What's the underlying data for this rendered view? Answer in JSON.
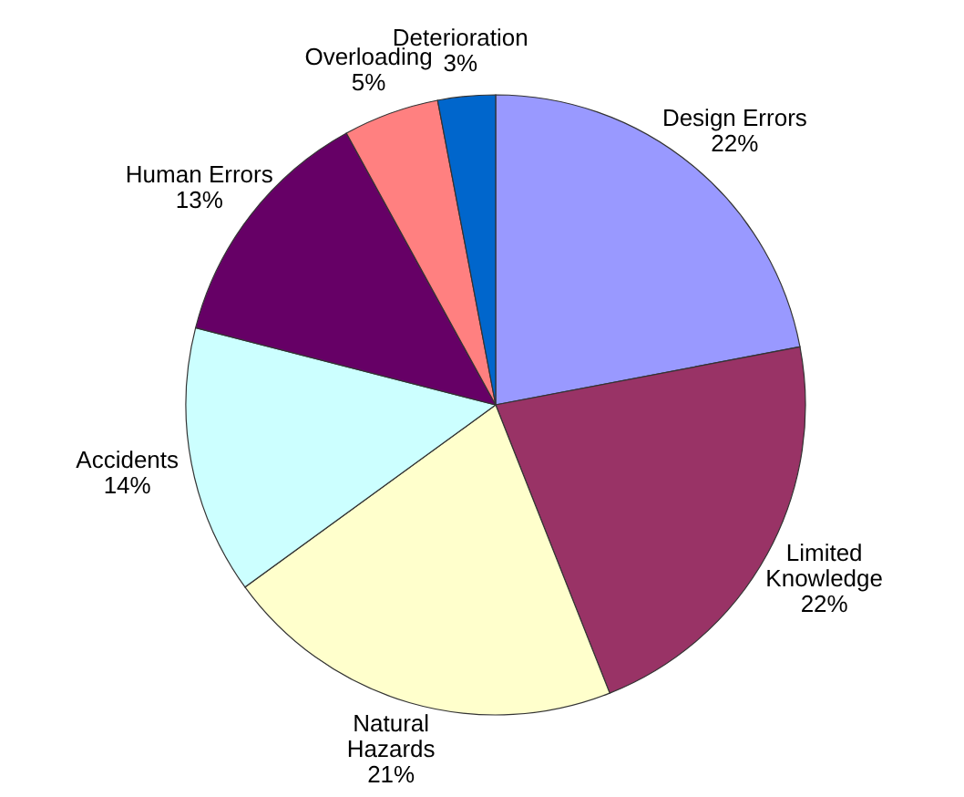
{
  "chart_data": {
    "type": "pie",
    "categories": [
      "Design Errors",
      "Limited Knowledge",
      "Natural Hazards",
      "Accidents",
      "Human Errors",
      "Overloading",
      "Deterioration"
    ],
    "values": [
      22,
      22,
      21,
      14,
      13,
      5,
      3
    ],
    "value_labels": [
      "22%",
      "22%",
      "21%",
      "14%",
      "13%",
      "5%",
      "3%"
    ],
    "colors": [
      "#9999ff",
      "#993366",
      "#ffffcc",
      "#ccffff",
      "#660066",
      "#ff8080",
      "#0066cc"
    ]
  }
}
